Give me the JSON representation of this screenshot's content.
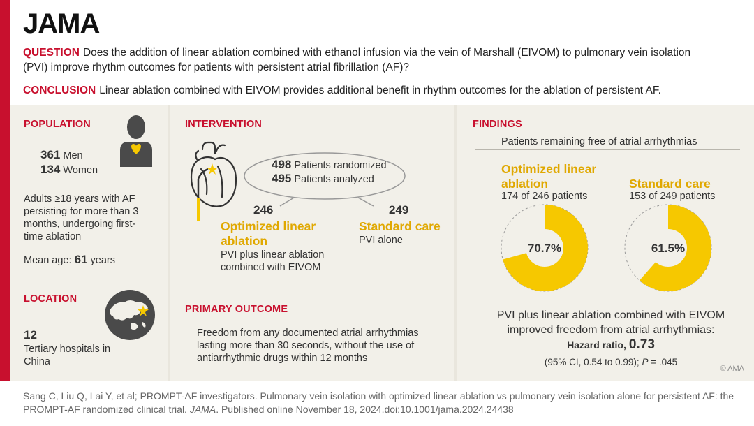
{
  "logo": "JAMA",
  "question": {
    "label": "QUESTION",
    "text": "Does the addition of linear ablation combined with ethanol infusion via the vein of Marshall (EIVOM) to pulmonary vein isolation (PVI) improve rhythm outcomes for patients with persistent atrial fibrillation (AF)?"
  },
  "conclusion": {
    "label": "CONCLUSION",
    "text": "Linear ablation combined with EIVOM provides additional benefit in rhythm outcomes for the ablation of persistent AF."
  },
  "population": {
    "title": "POPULATION",
    "men_count": "361",
    "men_label": "Men",
    "women_count": "134",
    "women_label": "Women",
    "description": "Adults ≥18 years with AF persisting for more than 3 months, undergoing first-time ablation",
    "mean_age_label": "Mean age:",
    "mean_age_value": "61",
    "mean_age_unit": "years"
  },
  "location": {
    "title": "LOCATION",
    "count": "12",
    "description": "Tertiary hospitals in China"
  },
  "intervention": {
    "title": "INTERVENTION",
    "randomized_count": "498",
    "randomized_label": "Patients randomized",
    "analyzed_count": "495",
    "analyzed_label": "Patients analyzed",
    "arm1_count": "246",
    "arm1_name": "Optimized linear ablation",
    "arm1_desc": "PVI plus linear ablation combined with EIVOM",
    "arm2_count": "249",
    "arm2_name": "Standard care",
    "arm2_desc": "PVI alone"
  },
  "primary_outcome": {
    "title": "PRIMARY OUTCOME",
    "text": "Freedom from any documented atrial arrhythmias lasting more than 30 seconds, without the use of antiarrhythmic drugs within 12 months"
  },
  "findings": {
    "title": "FINDINGS",
    "subtitle": "Patients remaining free of atrial arrhythmias",
    "summary": "PVI plus linear ablation combined with EIVOM improved freedom from atrial arrhythmias:",
    "hr_label": "Hazard ratio,",
    "hr_value": "0.73",
    "ci_text": "(95% CI, 0.54 to 0.99);",
    "p_label": "P",
    "p_value": "= .045"
  },
  "chart_data": {
    "type": "pie",
    "series": [
      {
        "name": "Optimized linear ablation",
        "detail": "174 of 246 patients",
        "value": 70.7,
        "label": "70.7%"
      },
      {
        "name": "Standard care",
        "detail": "153 of 249 patients",
        "value": 61.5,
        "label": "61.5%"
      }
    ],
    "colors": {
      "fill": "#f6c800",
      "remaining": "#9a9a9a"
    }
  },
  "copyright": "© AMA",
  "citation": {
    "part1": "Sang C, Liu Q, Lai Y, et al; PROMPT-AF investigators. Pulmonary vein isolation with optimized linear ablation vs pulmonary vein isolation alone for persistent AF: the PROMPT-AF randomized clinical trial.",
    "journal": "JAMA",
    "part2": ". Published online November 18, 2024.doi:10.1001/jama.2024.24438"
  }
}
